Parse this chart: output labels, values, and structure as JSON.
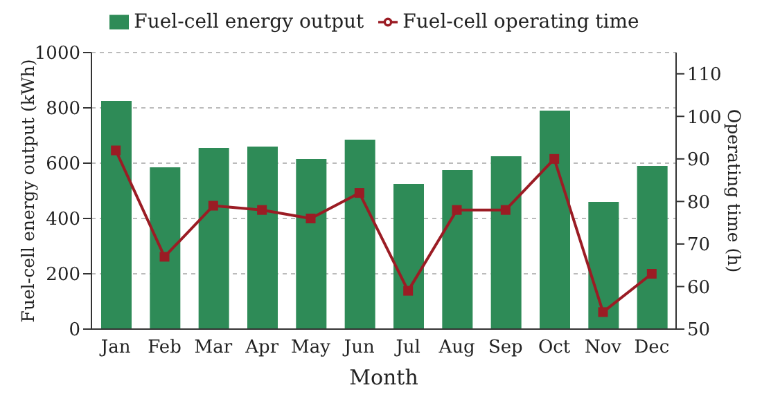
{
  "chart_data": {
    "type": "bar",
    "xlabel": "Month",
    "ylabel": "Fuel-cell energy output (kWh)",
    "y2label": "Operating time (h)",
    "categories": [
      "Jan",
      "Feb",
      "Mar",
      "Apr",
      "May",
      "Jun",
      "Jul",
      "Aug",
      "Sep",
      "Oct",
      "Nov",
      "Dec"
    ],
    "series": [
      {
        "name": "Fuel-cell energy output",
        "color": "#2e8b57",
        "values": [
          825,
          585,
          655,
          660,
          615,
          685,
          525,
          575,
          625,
          790,
          460,
          590
        ]
      },
      {
        "name": "Fuel-cell operating time",
        "type": "line",
        "axis": "y2",
        "color": "#9b1c24",
        "marker": "square",
        "values": [
          92,
          67,
          79,
          78,
          76,
          82,
          59,
          78,
          78,
          90,
          54,
          63
        ]
      }
    ],
    "ylim": [
      0,
      1000
    ],
    "yticks": [
      0,
      200,
      400,
      600,
      800,
      1000
    ],
    "y2lim": [
      50,
      115
    ],
    "y2ticks": [
      50,
      60,
      70,
      80,
      90,
      100,
      110
    ],
    "grid": "y",
    "legend": "top"
  }
}
